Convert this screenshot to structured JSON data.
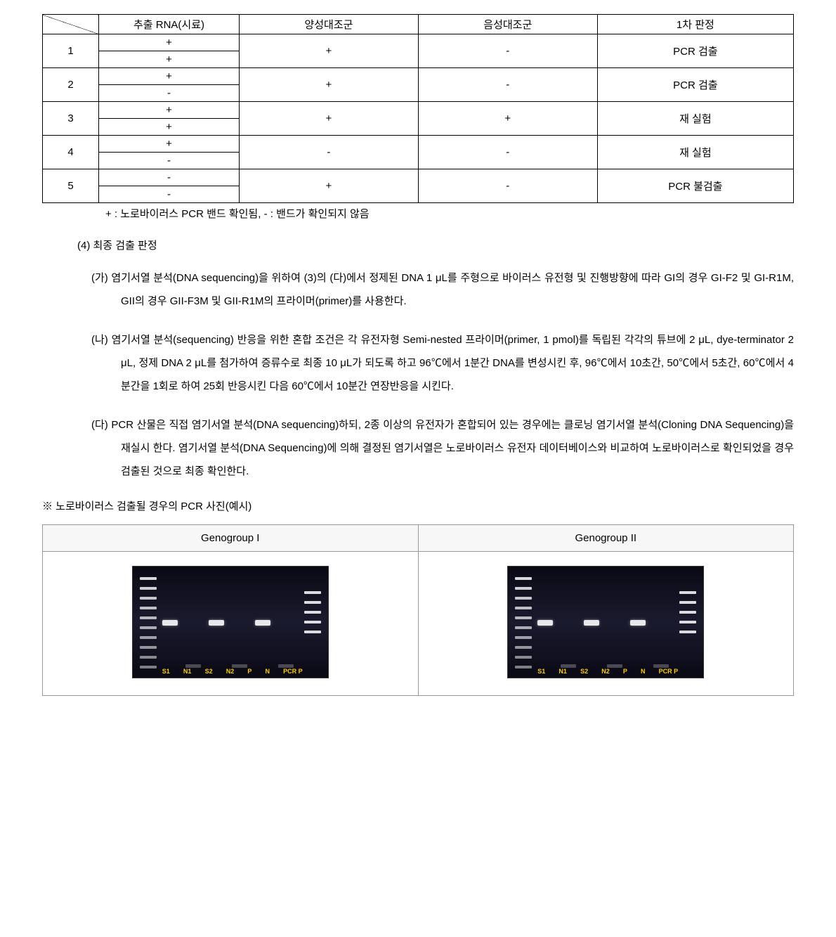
{
  "table": {
    "headers": [
      "추출 RNA(시료)",
      "양성대조군",
      "음성대조군",
      "1차 판정"
    ],
    "rows": [
      {
        "num": "1",
        "rna": [
          "+",
          "+"
        ],
        "pos": "+",
        "neg": "-",
        "result": "PCR 검출"
      },
      {
        "num": "2",
        "rna": [
          "+",
          "-"
        ],
        "pos": "+",
        "neg": "-",
        "result": "PCR 검출"
      },
      {
        "num": "3",
        "rna": [
          "+",
          "+"
        ],
        "pos": "+",
        "neg": "+",
        "result": "재 실험"
      },
      {
        "num": "4",
        "rna": [
          "+",
          "-"
        ],
        "pos": "-",
        "neg": "-",
        "result": "재 실험"
      },
      {
        "num": "5",
        "rna": [
          "-",
          "-"
        ],
        "pos": "+",
        "neg": "-",
        "result": "PCR 불검출"
      }
    ]
  },
  "table_footnote": "+ : 노로바이러스 PCR 밴드 확인됨, - : 밴드가 확인되지 않음",
  "section4": {
    "heading": "(4) 최종 검출 판정",
    "items": [
      {
        "label": "(가)",
        "text": "염기서열 분석(DNA sequencing)을 위하여 (3)의 (다)에서 정제된 DNA 1 μL를 주형으로 바이러스 유전형 및 진행방향에 따라 GI의 경우 GI-F2 및 GI-R1M, GII의 경우 GII-F3M 및 GII-R1M의 프라이머(primer)를 사용한다."
      },
      {
        "label": "(나)",
        "text": "염기서열 분석(sequencing) 반응을 위한 혼합 조건은 각 유전자형 Semi-nested 프라이머(primer, 1 pmol)를 독립된 각각의 튜브에 2 μL, dye-terminator 2 μL, 정제 DNA 2 μL를 첨가하여 증류수로 최종 10 μL가 되도록 하고 96℃에서 1분간 DNA를 변성시킨 후, 96℃에서 10초간, 50℃에서 5초간, 60℃에서 4분간을 1회로 하여 25회 반응시킨 다음 60℃에서 10분간 연장반응을 시킨다."
      },
      {
        "label": "(다)",
        "text": "PCR 산물은 직접 염기서열 분석(DNA sequencing)하되, 2종 이상의 유전자가 혼합되어 있는 경우에는 클로닝 염기서열 분석(Cloning DNA Sequencing)을 재실시 한다. 염기서열 분석(DNA Sequencing)에 의해 결정된 염기서열은 노로바이러스 유전자 데이터베이스와 비교하여 노로바이러스로 확인되었을 경우 검출된 것으로 최종 확인한다."
      }
    ]
  },
  "gel_section": {
    "caption": "※ 노로바이러스 검출될 경우의 PCR 사진(예시)",
    "headers": [
      "Genogroup I",
      "Genogroup II"
    ],
    "lane_labels": [
      "S1",
      "N1",
      "S2",
      "N2",
      "P",
      "N",
      "PCR P"
    ],
    "gel": {
      "ladder_bands": 10,
      "right_ladder_bands": 5,
      "visible_bands_offsets": [
        0,
        66,
        132
      ],
      "faint_bands_offsets": [
        33,
        99,
        165
      ],
      "band_top_pct": 48,
      "faint_top_pct": 88
    }
  }
}
